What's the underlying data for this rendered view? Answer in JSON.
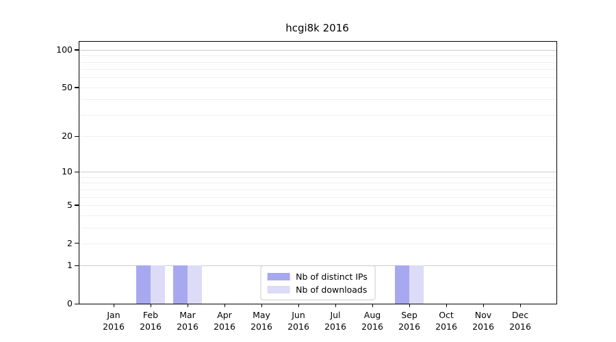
{
  "chart_data": {
    "type": "bar",
    "title": "hcgi8k 2016",
    "xlabel": "",
    "ylabel": "",
    "y_scale": "log1p",
    "ylim": [
      0,
      116
    ],
    "y_ticks": [
      0,
      1,
      2,
      5,
      10,
      20,
      50,
      100
    ],
    "y_grid_major": [
      1,
      10,
      100
    ],
    "y_grid_minor": [
      2,
      3,
      4,
      5,
      6,
      7,
      8,
      9,
      20,
      30,
      40,
      50,
      60,
      70,
      80,
      90
    ],
    "grid": "on",
    "legend_position": "lower center",
    "categories": [
      "Jan 2016",
      "Feb 2016",
      "Mar 2016",
      "Apr 2016",
      "May 2016",
      "Jun 2016",
      "Jul 2016",
      "Aug 2016",
      "Sep 2016",
      "Oct 2016",
      "Nov 2016",
      "Dec 2016"
    ],
    "series": [
      {
        "name": "Nb of distinct IPs",
        "color": "#a8a8f0",
        "values": [
          0,
          1,
          1,
          0,
          0,
          0,
          0,
          0,
          1,
          0,
          0,
          0
        ]
      },
      {
        "name": "Nb of downloads",
        "color": "#dcdcf8",
        "values": [
          0,
          1,
          1,
          0,
          0,
          0,
          0,
          0,
          1,
          0,
          0,
          0
        ]
      }
    ],
    "colors": {
      "axis": "#000000",
      "grid_major": "#cccccc",
      "grid_minor": "#efefef",
      "background": "#ffffff",
      "legend_border": "#cccccc"
    }
  }
}
